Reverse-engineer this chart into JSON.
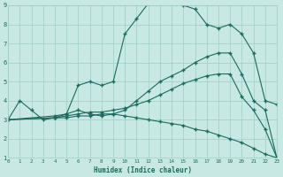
{
  "xlabel": "Humidex (Indice chaleur)",
  "xlim": [
    0,
    23
  ],
  "ylim": [
    1,
    9
  ],
  "xticks": [
    0,
    1,
    2,
    3,
    4,
    5,
    6,
    7,
    8,
    9,
    10,
    11,
    12,
    13,
    14,
    15,
    16,
    17,
    18,
    19,
    20,
    21,
    22,
    23
  ],
  "yticks": [
    1,
    2,
    3,
    4,
    5,
    6,
    7,
    8,
    9
  ],
  "bg_color": "#c8e8e4",
  "grid_color": "#9eccc6",
  "line_color": "#1a6b5c",
  "s1_x": [
    0,
    1,
    2,
    3,
    4,
    5,
    6,
    7,
    8,
    9,
    10,
    11,
    12,
    13,
    14,
    15,
    16,
    17,
    18,
    19,
    20,
    21,
    22,
    23
  ],
  "s1_y": [
    3.0,
    4.0,
    3.5,
    3.0,
    3.1,
    3.3,
    4.8,
    5.0,
    4.8,
    5.0,
    7.5,
    8.3,
    9.1,
    9.2,
    9.2,
    9.0,
    8.8,
    8.0,
    7.8,
    8.0,
    7.5,
    6.5,
    4.0,
    3.8
  ],
  "s2_x": [
    0,
    4,
    5,
    6,
    7,
    8,
    9,
    10,
    11,
    12,
    13,
    14,
    15,
    16,
    17,
    18,
    19,
    20,
    21,
    22,
    23
  ],
  "s2_y": [
    3.0,
    3.2,
    3.3,
    3.5,
    3.3,
    3.2,
    3.3,
    3.5,
    4.0,
    4.5,
    5.0,
    5.3,
    5.6,
    6.0,
    6.3,
    6.5,
    6.5,
    5.4,
    4.0,
    3.5,
    1.0
  ],
  "s3_x": [
    0,
    4,
    5,
    6,
    7,
    8,
    9,
    10,
    11,
    12,
    13,
    14,
    15,
    16,
    17,
    18,
    19,
    20,
    21,
    22,
    23
  ],
  "s3_y": [
    3.0,
    3.1,
    3.2,
    3.3,
    3.4,
    3.4,
    3.5,
    3.6,
    3.8,
    4.0,
    4.3,
    4.6,
    4.9,
    5.1,
    5.3,
    5.4,
    5.4,
    4.2,
    3.5,
    2.5,
    1.0
  ],
  "s4_x": [
    0,
    4,
    5,
    6,
    7,
    8,
    9,
    10,
    11,
    12,
    13,
    14,
    15,
    16,
    17,
    18,
    19,
    20,
    21,
    22,
    23
  ],
  "s4_y": [
    3.0,
    3.1,
    3.1,
    3.2,
    3.2,
    3.3,
    3.3,
    3.2,
    3.1,
    3.0,
    2.9,
    2.8,
    2.7,
    2.5,
    2.4,
    2.2,
    2.0,
    1.8,
    1.5,
    1.2,
    1.0
  ]
}
